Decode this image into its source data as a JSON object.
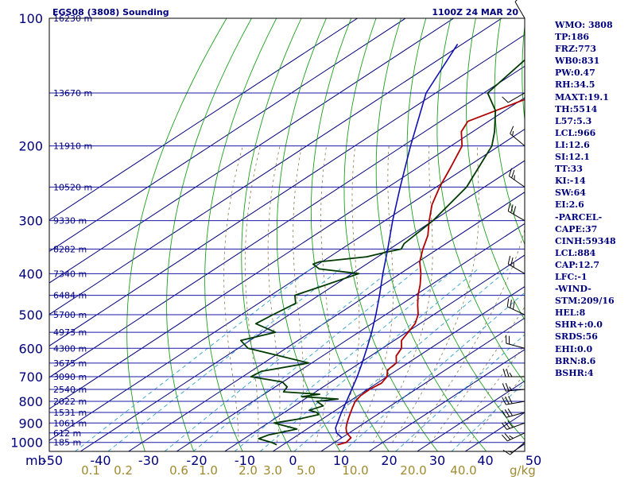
{
  "header": {
    "station": "EGS08 (3808) Sounding",
    "time": "1100Z 24 MAR 20"
  },
  "indices": [
    "WMO: 3808",
    "TP:186",
    "FRZ:773",
    "WB0:831",
    "PW:0.47",
    "RH:34.5",
    "MAXT:19.1",
    "TH:5514",
    "L57:5.3",
    "LCL:966",
    "LI:12.6",
    "SI:12.1",
    "TT:33",
    "KI:-14",
    "SW:64",
    "EI:2.6",
    "-PARCEL-",
    "CAPE:37",
    "CINH:59348",
    "LCL:884",
    "CAP:12.7",
    "LFC:-1",
    "-WIND-",
    "STM:209/16",
    "HEL:8",
    "SHR+:0.0",
    "SRDS:56",
    "EHI:0.0",
    "BRN:8.6",
    "BSHR:4"
  ],
  "chart_data": {
    "type": "line",
    "title": "EGS08 (3808) Sounding",
    "diagram": "skew-T log-P",
    "x_axis": {
      "label": "mb",
      "ticks": [
        -50,
        -40,
        -30,
        -20,
        -10,
        0,
        10,
        20,
        30,
        40,
        50
      ],
      "tick_labels": [
        "-50",
        "-40",
        "-30",
        "-20",
        "-10",
        "0",
        "10",
        "20",
        "30",
        "40",
        "50"
      ]
    },
    "y_axis": {
      "scale": "log",
      "ticks": [
        100,
        200,
        300,
        400,
        500,
        600,
        700,
        800,
        900,
        1000
      ],
      "tick_labels": [
        "100",
        "200",
        "300",
        "400",
        "500",
        "600",
        "700",
        "800",
        "900",
        "1000"
      ],
      "range": [
        100,
        1000
      ]
    },
    "mixing_ratio_labels": {
      "unit": "g/kg",
      "values": [
        "0.1",
        "0.2",
        "0.6",
        "1.0",
        "2.0",
        "3.0",
        "5.0",
        "10.0",
        "20.0",
        "40.0"
      ]
    },
    "height_labels": [
      {
        "p": 100,
        "label": "16230 m"
      },
      {
        "p": 150,
        "label": "13670 m"
      },
      {
        "p": 200,
        "label": "11910 m"
      },
      {
        "p": 250,
        "label": "10520 m"
      },
      {
        "p": 300,
        "label": "9330 m"
      },
      {
        "p": 350,
        "label": "8282 m"
      },
      {
        "p": 400,
        "label": "7340 m"
      },
      {
        "p": 450,
        "label": "6484 m"
      },
      {
        "p": 500,
        "label": "5700 m"
      },
      {
        "p": 550,
        "label": "4973 m"
      },
      {
        "p": 600,
        "label": "4300 m"
      },
      {
        "p": 650,
        "label": "3675 m"
      },
      {
        "p": 700,
        "label": "3090 m"
      },
      {
        "p": 750,
        "label": "2540 m"
      },
      {
        "p": 800,
        "label": "2022 m"
      },
      {
        "p": 850,
        "label": "1531 m"
      },
      {
        "p": 900,
        "label": "1061 m"
      },
      {
        "p": 950,
        "label": "612 m"
      },
      {
        "p": 1000,
        "label": "185 m"
      }
    ],
    "series": [
      {
        "color": "#b00000",
        "points": [
          [
            1013,
            11.3
          ],
          [
            1000,
            12.4
          ],
          [
            975,
            11.9
          ],
          [
            950,
            9.5
          ],
          [
            925,
            7.8
          ],
          [
            900,
            6.4
          ],
          [
            875,
            5.1
          ],
          [
            850,
            3.8
          ],
          [
            825,
            2.5
          ],
          [
            800,
            1.2
          ],
          [
            775,
            0.5
          ],
          [
            750,
            0.4
          ],
          [
            725,
            0.9
          ],
          [
            700,
            0.0
          ],
          [
            675,
            -2.0
          ],
          [
            650,
            -2.4
          ],
          [
            625,
            -4.7
          ],
          [
            600,
            -6.0
          ],
          [
            575,
            -8.5
          ],
          [
            550,
            -9.7
          ],
          [
            525,
            -11.0
          ],
          [
            500,
            -13.2
          ],
          [
            475,
            -16.3
          ],
          [
            450,
            -19.4
          ],
          [
            425,
            -22.3
          ],
          [
            400,
            -25.7
          ],
          [
            375,
            -29.7
          ],
          [
            350,
            -33.1
          ],
          [
            325,
            -36.4
          ],
          [
            300,
            -40.8
          ],
          [
            275,
            -45.3
          ],
          [
            250,
            -49.3
          ],
          [
            225,
            -53.2
          ],
          [
            200,
            -57.7
          ],
          [
            185,
            -62.4
          ],
          [
            175,
            -64.3
          ],
          [
            150,
            -58.0
          ],
          [
            125,
            -50.5
          ],
          [
            100,
            -43.5
          ]
        ]
      },
      {
        "color": "#003a00",
        "points": [
          [
            1013,
            -1.3
          ],
          [
            1000,
            -3.1
          ],
          [
            980,
            -7.0
          ],
          [
            960,
            -6.1
          ],
          [
            930,
            -2.1
          ],
          [
            900,
            -8.8
          ],
          [
            880,
            -4.8
          ],
          [
            860,
            -2.2
          ],
          [
            850,
            -3.2
          ],
          [
            840,
            -5.5
          ],
          [
            820,
            -4.0
          ],
          [
            800,
            -6.8
          ],
          [
            790,
            -3.1
          ],
          [
            780,
            -11.4
          ],
          [
            770,
            -8.4
          ],
          [
            760,
            -16.7
          ],
          [
            740,
            -17.5
          ],
          [
            720,
            -20.1
          ],
          [
            700,
            -28.3
          ],
          [
            680,
            -27.8
          ],
          [
            650,
            -20.6
          ],
          [
            625,
            -29.0
          ],
          [
            600,
            -37.9
          ],
          [
            575,
            -41.9
          ],
          [
            550,
            -37.3
          ],
          [
            525,
            -44.1
          ],
          [
            500,
            -43.4
          ],
          [
            470,
            -42.3
          ],
          [
            450,
            -45.0
          ],
          [
            430,
            -42.5
          ],
          [
            400,
            -38.6
          ],
          [
            390,
            -48.3
          ],
          [
            380,
            -51.1
          ],
          [
            375,
            -50.5
          ],
          [
            365,
            -42.3
          ],
          [
            355,
            -39.5
          ],
          [
            350,
            -37.6
          ],
          [
            340,
            -38.7
          ],
          [
            300,
            -40.0
          ],
          [
            250,
            -43.7
          ],
          [
            200,
            -51.5
          ],
          [
            185,
            -55.5
          ],
          [
            165,
            -62.0
          ],
          [
            150,
            -69.2
          ],
          [
            125,
            -72.0
          ],
          [
            100,
            -78.2
          ]
        ]
      },
      {
        "color": "#1010b0",
        "points": [
          [
            975,
            10.0
          ],
          [
            950,
            7.4
          ],
          [
            925,
            5.6
          ],
          [
            900,
            4.4
          ],
          [
            850,
            1.9
          ],
          [
            800,
            -0.6
          ],
          [
            750,
            -3.3
          ],
          [
            700,
            -6.2
          ],
          [
            650,
            -9.5
          ],
          [
            600,
            -13.2
          ],
          [
            550,
            -17.3
          ],
          [
            500,
            -22.0
          ],
          [
            450,
            -27.4
          ],
          [
            400,
            -33.6
          ],
          [
            350,
            -40.4
          ],
          [
            300,
            -48.4
          ],
          [
            250,
            -57.5
          ],
          [
            200,
            -68.4
          ],
          [
            150,
            -82.0
          ],
          [
            115,
            -91.0
          ]
        ]
      }
    ],
    "winds": [
      {
        "p": 1000,
        "dir": 230,
        "spd": 15
      },
      {
        "p": 950,
        "dir": 245,
        "spd": 25
      },
      {
        "p": 900,
        "dir": 250,
        "spd": 30
      },
      {
        "p": 850,
        "dir": 255,
        "spd": 30
      },
      {
        "p": 800,
        "dir": 260,
        "spd": 30
      },
      {
        "p": 750,
        "dir": 265,
        "spd": 25
      },
      {
        "p": 700,
        "dir": 270,
        "spd": 25
      },
      {
        "p": 600,
        "dir": 285,
        "spd": 20
      },
      {
        "p": 500,
        "dir": 295,
        "spd": 30
      },
      {
        "p": 400,
        "dir": 300,
        "spd": 25
      },
      {
        "p": 300,
        "dir": 300,
        "spd": 30
      },
      {
        "p": 250,
        "dir": 305,
        "spd": 25
      },
      {
        "p": 200,
        "dir": 310,
        "spd": 15
      },
      {
        "p": 150,
        "dir": 240,
        "spd": 10
      },
      {
        "p": 100,
        "dir": 330,
        "spd": 10
      }
    ]
  }
}
